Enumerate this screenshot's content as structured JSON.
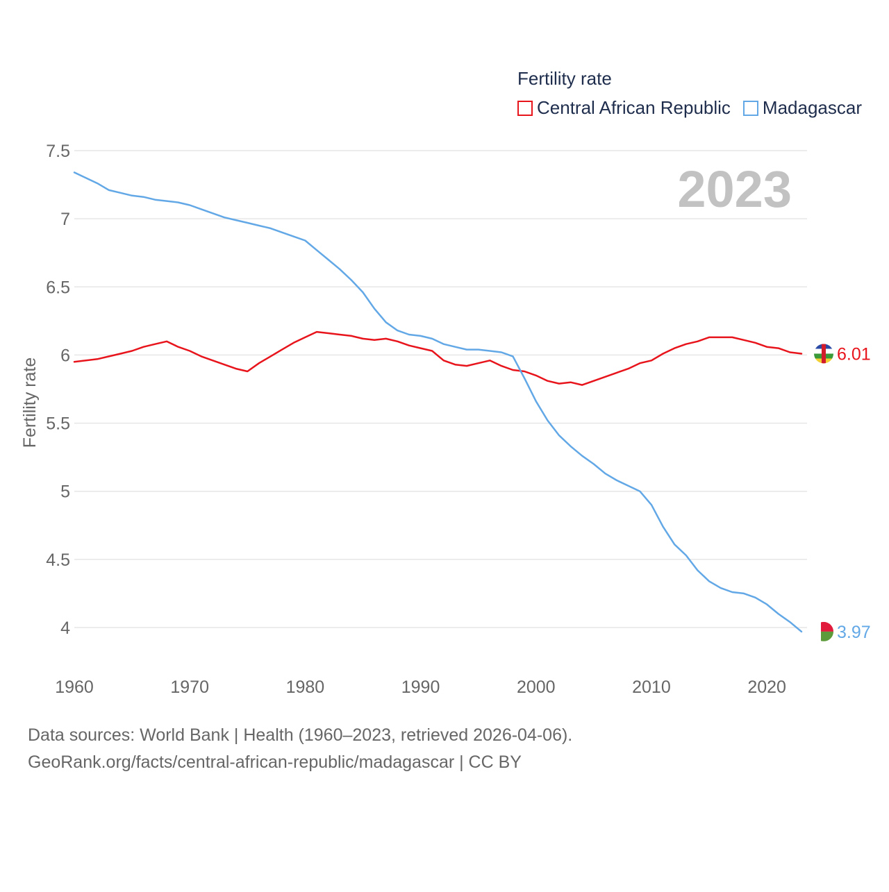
{
  "legend": {
    "title": "Fertility rate",
    "items": [
      {
        "label": "Central African Republic",
        "color": "#e8141c"
      },
      {
        "label": "Madagascar",
        "color": "#63a8e6"
      }
    ]
  },
  "year_label": "2023",
  "sources": {
    "line1": "Data sources: World Bank | Health (1960–2023, retrieved 2026-04-06).",
    "line2": "GeoRank.org/facts/central-african-republic/madagascar | CC BY"
  },
  "chart_data": {
    "type": "line",
    "title": "Fertility rate",
    "ylabel": "Fertility rate",
    "xlabel": "",
    "xlim": [
      1960,
      2023
    ],
    "ylim": [
      3.75,
      7.6
    ],
    "xticks": [
      1960,
      1970,
      1980,
      1990,
      2000,
      2010,
      2020
    ],
    "yticks": [
      {
        "value": 4,
        "label": "4"
      },
      {
        "value": 4.5,
        "label": "4.5"
      },
      {
        "value": 5,
        "label": "5"
      },
      {
        "value": 5.5,
        "label": "5.5"
      },
      {
        "value": 6,
        "label": "6"
      },
      {
        "value": 6.5,
        "label": "6.5"
      },
      {
        "value": 7,
        "label": "7"
      },
      {
        "value": 7.5,
        "label": "7.5"
      }
    ],
    "grid": true,
    "legend_position": "top-right",
    "x": [
      1960,
      1961,
      1962,
      1963,
      1964,
      1965,
      1966,
      1967,
      1968,
      1969,
      1970,
      1971,
      1972,
      1973,
      1974,
      1975,
      1976,
      1977,
      1978,
      1979,
      1980,
      1981,
      1982,
      1983,
      1984,
      1985,
      1986,
      1987,
      1988,
      1989,
      1990,
      1991,
      1992,
      1993,
      1994,
      1995,
      1996,
      1997,
      1998,
      1999,
      2000,
      2001,
      2002,
      2003,
      2004,
      2005,
      2006,
      2007,
      2008,
      2009,
      2010,
      2011,
      2012,
      2013,
      2014,
      2015,
      2016,
      2017,
      2018,
      2019,
      2020,
      2021,
      2022,
      2023
    ],
    "series": [
      {
        "name": "Central African Republic",
        "color": "#e8141c",
        "end_label": "6.01",
        "values": [
          5.95,
          5.96,
          5.97,
          5.99,
          6.01,
          6.03,
          6.06,
          6.08,
          6.1,
          6.06,
          6.03,
          5.99,
          5.96,
          5.93,
          5.9,
          5.88,
          5.94,
          5.99,
          6.04,
          6.09,
          6.13,
          6.17,
          6.16,
          6.15,
          6.14,
          6.12,
          6.11,
          6.12,
          6.1,
          6.07,
          6.05,
          6.03,
          5.96,
          5.93,
          5.92,
          5.94,
          5.96,
          5.92,
          5.89,
          5.88,
          5.85,
          5.81,
          5.79,
          5.8,
          5.78,
          5.81,
          5.84,
          5.87,
          5.9,
          5.94,
          5.96,
          6.01,
          6.05,
          6.08,
          6.1,
          6.13,
          6.13,
          6.13,
          6.11,
          6.09,
          6.06,
          6.05,
          6.02,
          6.01
        ]
      },
      {
        "name": "Madagascar",
        "color": "#63a8e6",
        "end_label": "3.97",
        "values": [
          7.34,
          7.3,
          7.26,
          7.21,
          7.19,
          7.17,
          7.16,
          7.14,
          7.13,
          7.12,
          7.1,
          7.07,
          7.04,
          7.01,
          6.99,
          6.97,
          6.95,
          6.93,
          6.9,
          6.87,
          6.84,
          6.77,
          6.7,
          6.63,
          6.55,
          6.46,
          6.34,
          6.24,
          6.18,
          6.15,
          6.14,
          6.12,
          6.08,
          6.06,
          6.04,
          6.04,
          6.03,
          6.02,
          5.99,
          5.83,
          5.66,
          5.52,
          5.41,
          5.33,
          5.26,
          5.2,
          5.13,
          5.08,
          5.04,
          5.0,
          4.9,
          4.74,
          4.61,
          4.53,
          4.42,
          4.34,
          4.29,
          4.26,
          4.25,
          4.22,
          4.17,
          4.1,
          4.04,
          3.97
        ]
      }
    ]
  }
}
